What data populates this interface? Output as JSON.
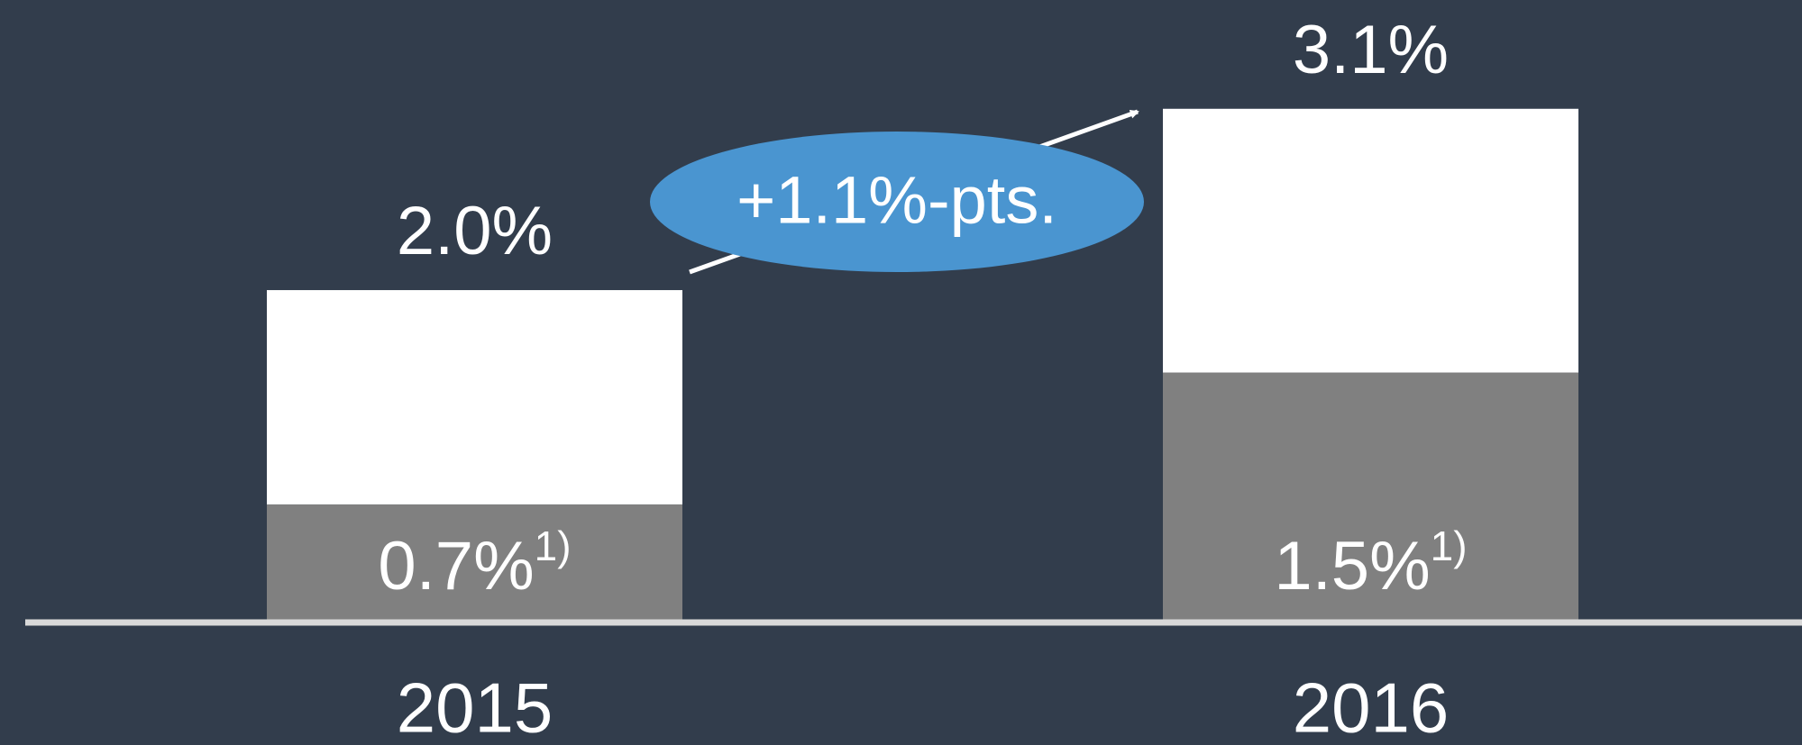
{
  "chart_data": {
    "type": "stacked_bar",
    "categories": [
      "2015",
      "2016"
    ],
    "series": [
      {
        "color": "#808080",
        "values": [
          0.7,
          1.5
        ],
        "value_labels": [
          "0.7%",
          "1.5%"
        ],
        "footnote": "1)"
      },
      {
        "color": "#ffffff",
        "values": [
          1.3,
          1.6
        ]
      }
    ],
    "totals": [
      2.0,
      3.1
    ],
    "total_labels": [
      "2.0%",
      "3.1%"
    ],
    "annotation": "+1.1%-pts.",
    "ylim": [
      0,
      3.76
    ]
  }
}
